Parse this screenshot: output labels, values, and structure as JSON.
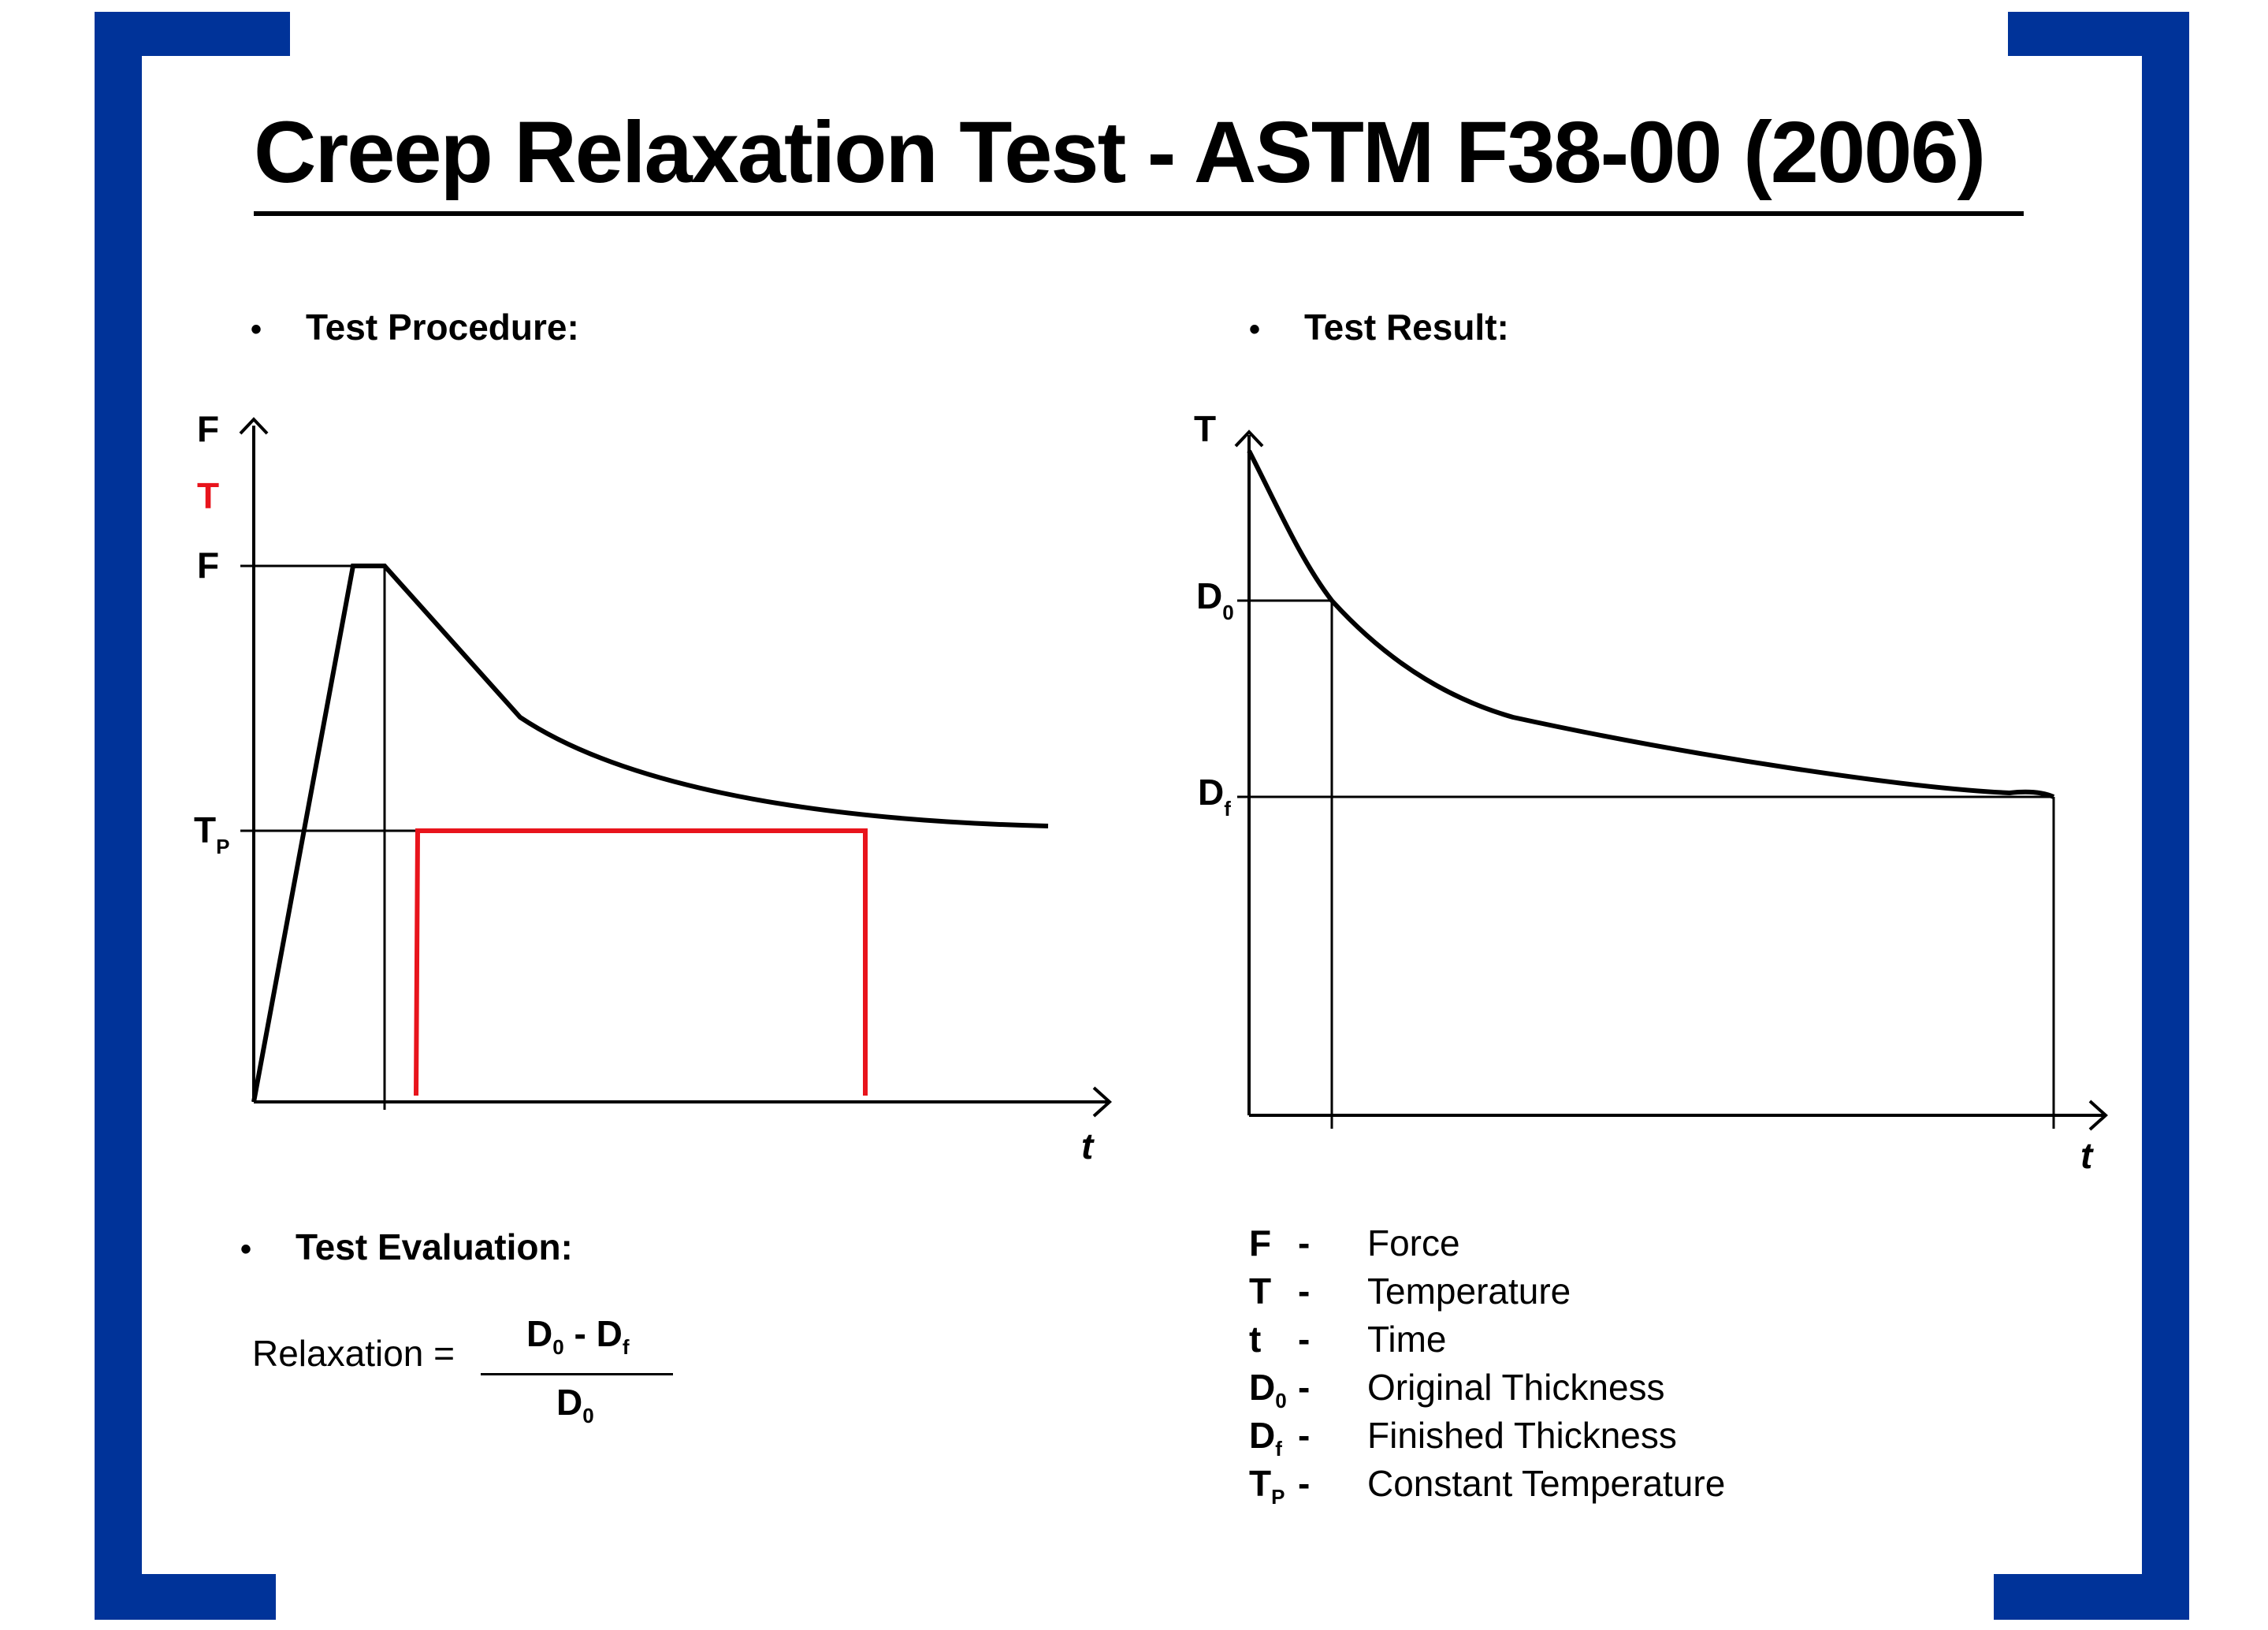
{
  "title": "Creep Relaxation Test - ASTM F38-00 (2006)",
  "colors": {
    "bracket": "#003399",
    "force_curve": "#000000",
    "temperature": "#e8141c",
    "text": "#000000"
  },
  "bullet": "•",
  "sections": {
    "procedure": "Test Procedure:",
    "result": "Test Result:",
    "evaluation": "Test Evaluation:"
  },
  "procedure_chart": {
    "y_axis_label": "F",
    "y_axis_label_secondary": "T",
    "level_force": "F",
    "level_temp_main": "T",
    "level_temp_sub": "P",
    "x_axis_label": "t"
  },
  "result_chart": {
    "y_axis_label": "T",
    "level_d0_main": "D",
    "level_d0_sub": "0",
    "level_df_main": "D",
    "level_df_sub": "f",
    "x_axis_label": "t"
  },
  "formula": {
    "label": "Relaxation =",
    "num_a": "D",
    "num_a_sub": "0",
    "num_op": " - ",
    "num_b": "D",
    "num_b_sub": "f",
    "den": "D",
    "den_sub": "0"
  },
  "legend": [
    {
      "symbol": "F",
      "sub": "",
      "dash": "-",
      "desc": "Force"
    },
    {
      "symbol": "T",
      "sub": "",
      "dash": "-",
      "desc": "Temperature"
    },
    {
      "symbol": "t",
      "sub": "",
      "dash": "-",
      "desc": "Time"
    },
    {
      "symbol": "D",
      "sub": "0",
      "dash": "-",
      "desc": "Original Thickness"
    },
    {
      "symbol": "D",
      "sub": "f",
      "dash": "-",
      "desc": "Finished Thickness"
    },
    {
      "symbol": "T",
      "sub": "P",
      "dash": "-",
      "desc": "Constant Temperature"
    }
  ]
}
